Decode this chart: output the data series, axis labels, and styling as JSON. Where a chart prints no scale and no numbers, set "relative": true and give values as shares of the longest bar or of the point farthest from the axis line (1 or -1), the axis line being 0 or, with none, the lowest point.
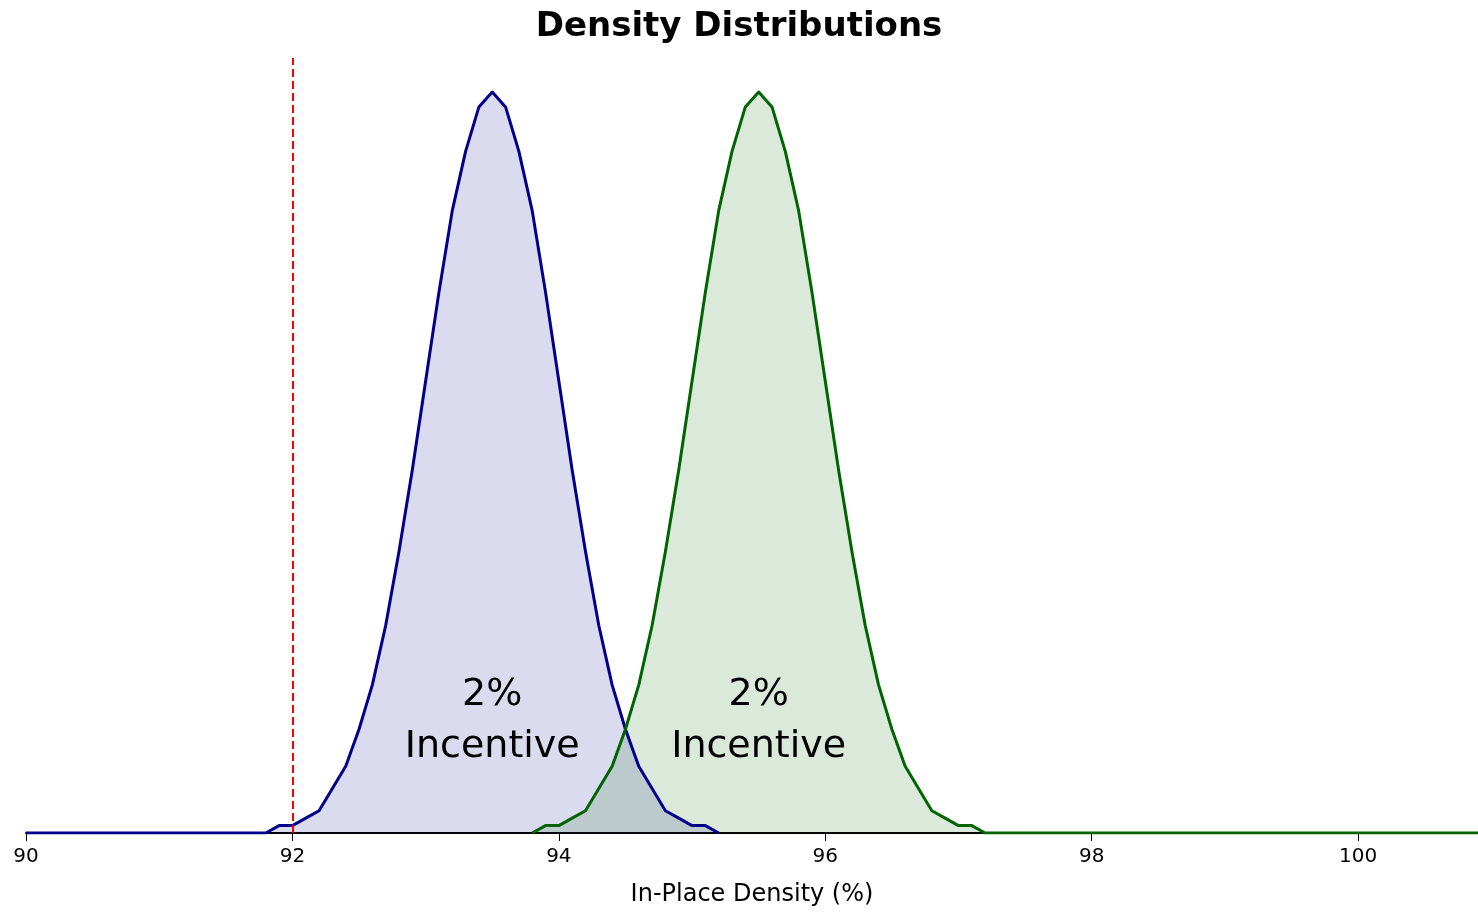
{
  "chart_data": {
    "type": "area",
    "title": "Density Distributions",
    "xlabel": "In-Place Density (%)",
    "relative": true,
    "series": [
      {
        "color": "#00008b",
        "x": [
          90,
          91,
          91.8,
          91.9,
          92,
          92.1,
          92.2,
          92.3,
          92.4,
          92.5,
          92.6,
          92.7,
          92.8,
          92.9,
          93,
          93.1,
          93.2,
          93.3,
          93.4,
          93.5,
          93.6,
          93.7,
          93.8,
          93.9,
          94,
          94.1,
          94.2,
          94.3,
          94.4,
          94.5,
          94.6,
          94.7,
          94.8,
          94.9,
          95,
          95.1,
          95.2
        ],
        "values": [
          0,
          0,
          0,
          0.01,
          0.01,
          0.02,
          0.03,
          0.06,
          0.09,
          0.14,
          0.2,
          0.28,
          0.38,
          0.49,
          0.61,
          0.73,
          0.84,
          0.92,
          0.98,
          1,
          0.98,
          0.92,
          0.84,
          0.73,
          0.61,
          0.49,
          0.38,
          0.28,
          0.2,
          0.14,
          0.09,
          0.06,
          0.03,
          0.02,
          0.01,
          0.01,
          0
        ]
      },
      {
        "color": "#006400",
        "x": [
          93.8,
          93.9,
          94,
          94.1,
          94.2,
          94.3,
          94.4,
          94.5,
          94.6,
          94.7,
          94.8,
          94.9,
          95,
          95.1,
          95.2,
          95.3,
          95.4,
          95.5,
          95.6,
          95.7,
          95.8,
          95.9,
          96,
          96.1,
          96.2,
          96.3,
          96.4,
          96.5,
          96.6,
          96.7,
          96.8,
          96.9,
          97,
          97.1,
          97.2,
          98,
          100.9
        ],
        "values": [
          0,
          0.01,
          0.01,
          0.02,
          0.03,
          0.06,
          0.09,
          0.14,
          0.2,
          0.28,
          0.38,
          0.49,
          0.61,
          0.73,
          0.84,
          0.92,
          0.98,
          1,
          0.98,
          0.92,
          0.84,
          0.73,
          0.61,
          0.49,
          0.38,
          0.28,
          0.2,
          0.14,
          0.09,
          0.06,
          0.03,
          0.02,
          0.01,
          0.01,
          0,
          0,
          0
        ]
      }
    ],
    "xlim": [
      90,
      100.9
    ],
    "xticks": [
      90,
      92,
      94,
      96,
      98,
      100
    ],
    "ref_lines": [
      {
        "axis": "x",
        "value": 92,
        "color": "#ff0000",
        "line_style": "dashed"
      }
    ],
    "annotations": [
      "2%\nIncentive",
      "2%\nIncentive"
    ],
    "grid": false
  }
}
